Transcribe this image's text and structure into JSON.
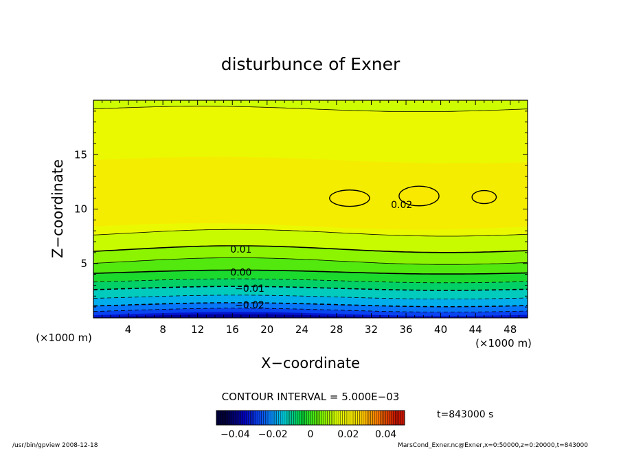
{
  "chart_data": {
    "type": "contour",
    "title": "disturbunce of Exner",
    "xlabel": "X−coordinate",
    "ylabel": "Z−coordinate",
    "x_unit": "(×1000 m)",
    "y_unit": "(×1000 m)",
    "xlim": [
      0,
      50
    ],
    "ylim": [
      0,
      20
    ],
    "x_ticks": [
      4,
      8,
      12,
      16,
      20,
      24,
      28,
      32,
      36,
      40,
      44,
      48
    ],
    "y_ticks": [
      5,
      10,
      15
    ],
    "grid": false,
    "contour_interval_text": "CONTOUR INTERVAL = 5.000E−03",
    "contour_interval": 0.005,
    "contour_labels": [
      {
        "text": "0.02",
        "value": 0.02,
        "x": 35.5,
        "z": 10.4
      },
      {
        "text": "0.01",
        "value": 0.01,
        "x": 17.0,
        "z": 6.3
      },
      {
        "text": "0.00",
        "value": 0.0,
        "x": 17.0,
        "z": 4.2
      },
      {
        "text": "−0.01",
        "value": -0.01,
        "x": 18.0,
        "z": 2.7
      },
      {
        "text": "−0.02",
        "value": -0.02,
        "x": 18.0,
        "z": 1.2
      }
    ],
    "colorbar": {
      "ticks": [
        -0.04,
        -0.02,
        0,
        0.02,
        0.04
      ],
      "tick_labels": [
        "−0.04",
        "−0.02",
        "0",
        "0.02",
        "0.04"
      ]
    },
    "time_label": "t=843000 s"
  },
  "footer": {
    "left": "/usr/bin/gpview   2008-12-18",
    "right": "MarsCond_Exner.nc@Exner,x=0:50000,z=0:20000,t=843000"
  }
}
